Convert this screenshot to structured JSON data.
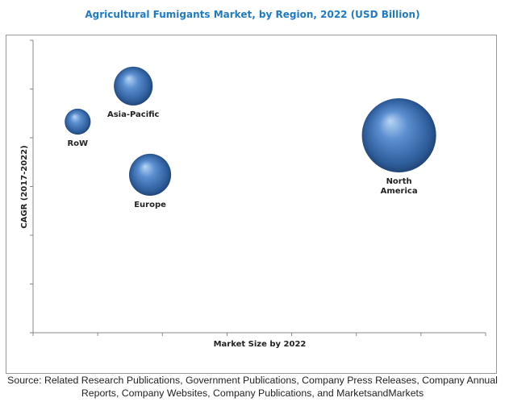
{
  "chart_data": {
    "type": "bubble",
    "title": "Agricultural Fumigants Market, by Region, 2022 (USD Billion)",
    "xlabel": "Market Size by 2022",
    "ylabel": "CAGR (2017-2022)",
    "xlim": [
      0,
      7
    ],
    "ylim": [
      0,
      6
    ],
    "x_ticks": 8,
    "y_ticks": 7,
    "tick_labels_shown": false,
    "grid": false,
    "color": "#3a6fb0",
    "points": [
      {
        "label": "Asia-Pacific",
        "x": 1.55,
        "y": 5.06,
        "size": 0.58
      },
      {
        "label": "RoW",
        "x": 0.69,
        "y": 4.33,
        "size": 0.26
      },
      {
        "label": "Europe",
        "x": 1.81,
        "y": 3.24,
        "size": 0.68
      },
      {
        "label": "North America",
        "label_lines": [
          "North",
          "America"
        ],
        "x": 5.66,
        "y": 4.05,
        "size": 2.12
      }
    ]
  },
  "source": "Source: Related Research Publications, Government Publications, Company Press Releases, Company Annual Reports, Company Websites, Company Publications, and MarketsandMarkets"
}
